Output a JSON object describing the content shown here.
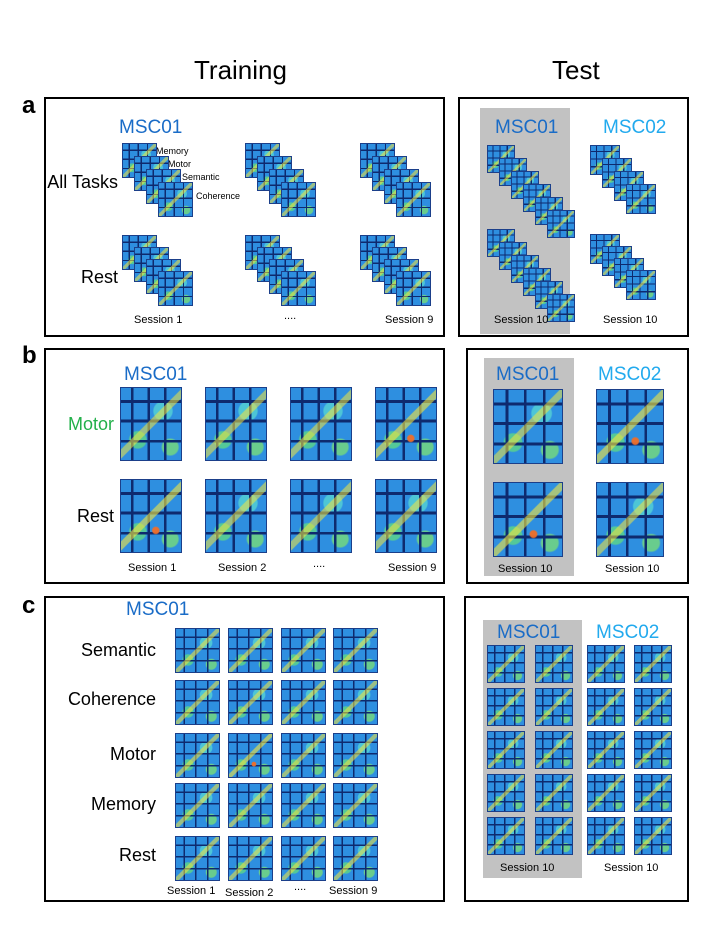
{
  "headers": {
    "training": "Training",
    "test": "Test"
  },
  "panels": {
    "a": {
      "label": "a",
      "training": {
        "subject": "MSC01",
        "conditions": [
          "All Tasks",
          "Rest"
        ],
        "task_labels": [
          "Memory",
          "Motor",
          "Semantic",
          "Coherence"
        ],
        "sessions": [
          "Session 1",
          "....",
          "Session 9"
        ]
      },
      "test": {
        "subjects": [
          "MSC01",
          "MSC02"
        ],
        "sessions": [
          "Session 10",
          "Session 10"
        ]
      }
    },
    "b": {
      "label": "b",
      "training": {
        "subject": "MSC01",
        "conditions": [
          "Motor",
          "Rest"
        ],
        "sessions": [
          "Session 1",
          "Session 2",
          "....",
          "Session 9"
        ]
      },
      "test": {
        "subjects": [
          "MSC01",
          "MSC02"
        ],
        "sessions": [
          "Session 10",
          "Session 10"
        ]
      }
    },
    "c": {
      "label": "c",
      "training": {
        "subject": "MSC01",
        "conditions": [
          "Semantic",
          "Coherence",
          "Motor",
          "Memory",
          "Rest"
        ],
        "sessions": [
          "Session 1",
          "Session 2",
          "....",
          "Session 9"
        ]
      },
      "test": {
        "subjects": [
          "MSC01",
          "MSC02"
        ],
        "sessions": [
          "Session 10",
          "Session 10"
        ]
      }
    }
  },
  "colors": {
    "msc01": "#1a6cc7",
    "msc02": "#22aaee",
    "motor": "#22b04a",
    "gray_box": "#c2c2c2"
  }
}
